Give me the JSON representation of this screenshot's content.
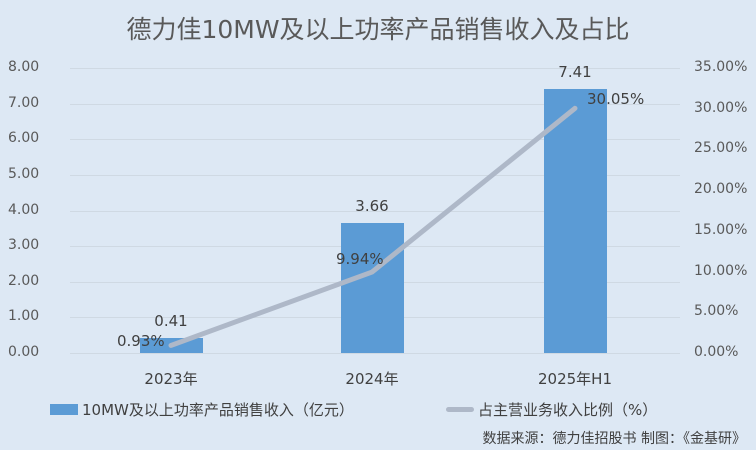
{
  "chart_data": {
    "type": "bar+line",
    "title": "德力佳10MW及以上功率产品销售收入及占比",
    "categories": [
      "2023年",
      "2024年",
      "2025年H1"
    ],
    "series": [
      {
        "name": "10MW及以上功率产品销售收入（亿元）",
        "type": "bar",
        "axis": "left",
        "values": [
          0.41,
          3.66,
          7.41
        ],
        "labels": [
          "0.41",
          "3.66",
          "7.41"
        ],
        "color": "#5b9bd5"
      },
      {
        "name": "占主营业务收入比例（%）",
        "type": "line",
        "axis": "right",
        "values": [
          0.93,
          9.94,
          30.05
        ],
        "labels": [
          "0.93%",
          "9.94%",
          "30.05%"
        ],
        "color": "#aeb8c8"
      }
    ],
    "y_left": {
      "min": 0,
      "max": 8,
      "step": 1,
      "ticks": [
        "8.00",
        "7.00",
        "6.00",
        "5.00",
        "4.00",
        "3.00",
        "2.00",
        "1.00",
        "0.00"
      ]
    },
    "y_right": {
      "min": 0,
      "max": 35,
      "step": 5,
      "ticks": [
        "35.00%",
        "30.00%",
        "25.00%",
        "20.00%",
        "15.00%",
        "10.00%",
        "5.00%",
        "0.00%"
      ]
    },
    "xlabel": "",
    "ylabel": "",
    "grid": true,
    "legend_position": "bottom"
  },
  "legend": {
    "bar_label": "10MW及以上功率产品销售收入（亿元）",
    "line_label": "占主营业务收入比例（%）"
  },
  "source": "数据来源：德力佳招股书  制图：《金基研》"
}
